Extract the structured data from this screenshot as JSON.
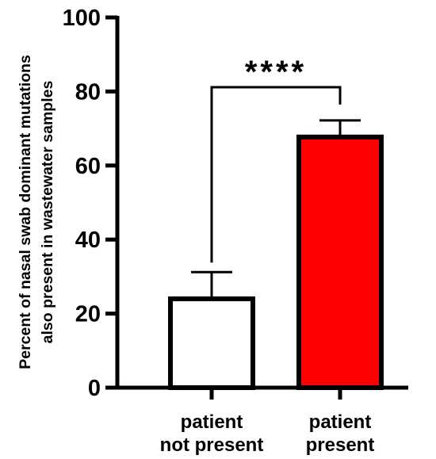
{
  "chart_data": {
    "type": "bar",
    "title": "",
    "xlabel": "",
    "ylabel": [
      "Percent of nasal swab dominant mutations",
      "also present in wastewater samples"
    ],
    "ylim": [
      0,
      100
    ],
    "yticks": [
      0,
      20,
      40,
      60,
      80,
      100
    ],
    "categories": [
      {
        "lines": [
          "patient",
          "not present"
        ]
      },
      {
        "lines": [
          "patient",
          "present"
        ]
      }
    ],
    "values": [
      24,
      67.7
    ],
    "error_upper": [
      7.2,
      4.5
    ],
    "bar_colors": [
      "#ffffff",
      "#ff0000"
    ],
    "bar_edge_color": "#000000",
    "significance": {
      "label": "****",
      "between": [
        0,
        1
      ]
    },
    "grid": false,
    "legend": "none"
  }
}
